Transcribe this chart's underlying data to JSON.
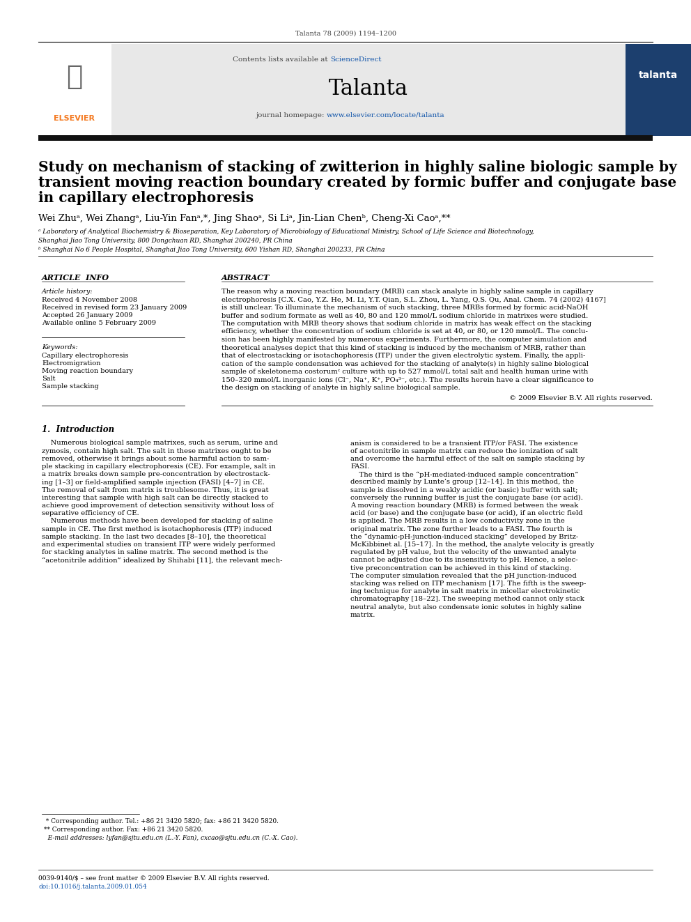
{
  "page_citation": "Talanta 78 (2009) 1194–1200",
  "journal_name": "Talanta",
  "contents_text_plain": "Contents lists available at ",
  "contents_text_link": "ScienceDirect",
  "journal_homepage_plain": "journal homepage: ",
  "journal_homepage_link": "www.elsevier.com/locate/talanta",
  "title_line1": "Study on mechanism of stacking of zwitterion in highly saline biologic sample by",
  "title_line2": "transient moving reaction boundary created by formic buffer and conjugate base",
  "title_line3": "in capillary electrophoresis",
  "authors": "Wei Zhuᵃ, Wei Zhangᵃ, Liu-Yin Fanᵃ,*, Jing Shaoᵃ, Si Liᵃ, Jin-Lian Chenᵇ, Cheng-Xi Caoᵃ,**",
  "affil_a": "ᵃ Laboratory of Analytical Biochemistry & Bioseparation, Key Laboratory of Microbiology of Educational Ministry, School of Life Science and Biotechnology,",
  "affil_a2": "Shanghai Jiao Tong University, 800 Dongchuan RD, Shanghai 200240, PR China",
  "affil_b": "ᵇ Shanghai No 6 People Hospital, Shanghai Jiao Tong University, 600 Yishan RD, Shanghai 200233, PR China",
  "article_info_title": "ARTICLE  INFO",
  "article_history_title": "Article history:",
  "ah_line1": "Received 4 November 2008",
  "ah_line2": "Received in revised form 23 January 2009",
  "ah_line3": "Accepted 26 January 2009",
  "ah_line4": "Available online 5 February 2009",
  "keywords_title": "Keywords:",
  "kw_line1": "Capillary electrophoresis",
  "kw_line2": "Electromigration",
  "kw_line3": "Moving reaction boundary",
  "kw_line4": "Salt",
  "kw_line5": "Sample stacking",
  "abstract_title": "ABSTRACT",
  "abs_lines": [
    "The reason why a moving reaction boundary (MRB) can stack analyte in highly saline sample in capillary",
    "electrophoresis [C.X. Cao, Y.Z. He, M. Li, Y.T. Qian, S.L. Zhou, L. Yang, Q.S. Qu, Anal. Chem. 74 (2002) 4167]",
    "is still unclear. To illuminate the mechanism of such stacking, three MRBs formed by formic acid-NaOH",
    "buffer and sodium formate as well as 40, 80 and 120 mmol/L sodium chloride in matrixes were studied.",
    "The computation with MRB theory shows that sodium chloride in matrix has weak effect on the stacking",
    "efficiency, whether the concentration of sodium chloride is set at 40, or 80, or 120 mmol/L. The conclu-",
    "sion has been highly manifested by numerous experiments. Furthermore, the computer simulation and",
    "theoretical analyses depict that this kind of stacking is induced by the mechanism of MRB, rather than",
    "that of electrostacking or isotachophoresis (ITP) under the given electrolytic system. Finally, the appli-",
    "cation of the sample condensation was achieved for the stacking of analyte(s) in highly saline biological",
    "sample of skeletonema costorumᶜ culture with up to 527 mmol/L total salt and health human urine with",
    "150–320 mmol/L inorganic ions (Cl⁻, Na⁺, K⁺, PO₄³⁻, etc.). The results herein have a clear significance to",
    "the design on stacking of analyte in highly saline biological sample."
  ],
  "copyright": "© 2009 Elsevier B.V. All rights reserved.",
  "intro_title": "1.  Introduction",
  "col1_lines": [
    "    Numerous biological sample matrixes, such as serum, urine and",
    "zymosis, contain high salt. The salt in these matrixes ought to be",
    "removed, otherwise it brings about some harmful action to sam-",
    "ple stacking in capillary electrophoresis (CE). For example, salt in",
    "a matrix breaks down sample pre-concentration by electrostack-",
    "ing [1–3] or field-amplified sample injection (FASI) [4–7] in CE.",
    "The removal of salt from matrix is troublesome. Thus, it is great",
    "interesting that sample with high salt can be directly stacked to",
    "achieve good improvement of detection sensitivity without loss of",
    "separative efficiency of CE.",
    "    Numerous methods have been developed for stacking of saline",
    "sample in CE. The first method is isotachophoresis (ITP) induced",
    "sample stacking. In the last two decades [8–10], the theoretical",
    "and experimental studies on transient ITP were widely performed",
    "for stacking analytes in saline matrix. The second method is the",
    "“acetonitrile addition” idealized by Shihabi [11], the relevant mech-"
  ],
  "col2_lines": [
    "anism is considered to be a transient ITP/or FASI. The existence",
    "of acetonitrile in sample matrix can reduce the ionization of salt",
    "and overcome the harmful effect of the salt on sample stacking by",
    "FASI.",
    "    The third is the “pH-mediated-induced sample concentration”",
    "described mainly by Lunte’s group [12–14]. In this method, the",
    "sample is dissolved in a weakly acidic (or basic) buffer with salt;",
    "conversely the running buffer is just the conjugate base (or acid).",
    "A moving reaction boundary (MRB) is formed between the weak",
    "acid (or base) and the conjugate base (or acid), if an electric field",
    "is applied. The MRB results in a low conductivity zone in the",
    "original matrix. The zone further leads to a FASI. The fourth is",
    "the “dynamic-pH-junction-induced stacking” developed by Britz-",
    "McKibbinet al. [15–17]. In the method, the analyte velocity is greatly",
    "regulated by pH value, but the velocity of the unwanted analyte",
    "cannot be adjusted due to its insensitivity to pH. Hence, a selec-",
    "tive preconcentration can be achieved in this kind of stacking.",
    "The computer simulation revealed that the pH junction-induced",
    "stacking was relied on ITP mechanism [17]. The fifth is the sweep-",
    "ing technique for analyte in salt matrix in micellar electrokinetic",
    "chromatography [18–22]. The sweeping method cannot only stack",
    "neutral analyte, but also condensate ionic solutes in highly saline",
    "matrix."
  ],
  "fn_line1": "  * Corresponding author. Tel.: +86 21 3420 5820; fax: +86 21 3420 5820.",
  "fn_line2": " ** Corresponding author. Fax: +86 21 3420 5820.",
  "fn_line3": "   E-mail addresses: lyfan@sjtu.edu.cn (L.-Y. Fan), cxcao@sjtu.edu.cn (C.-X. Cao).",
  "bottom_line1": "0039-9140/$ – see front matter © 2009 Elsevier B.V. All rights reserved.",
  "bottom_line2": "doi:10.1016/j.talanta.2009.01.054",
  "bg_color": "#ffffff",
  "gray_bg": "#e8e8e8",
  "elsevier_orange": "#f47920",
  "sd_blue": "#1155aa",
  "link_blue": "#1155aa",
  "dark_bar": "#111111"
}
